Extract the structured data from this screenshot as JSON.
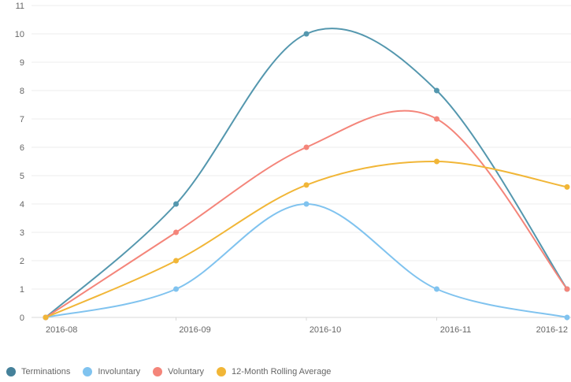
{
  "chart_data": {
    "type": "line",
    "categories": [
      "2016-08",
      "2016-09",
      "2016-10",
      "2016-11",
      "2016-12"
    ],
    "ylim": [
      0,
      11
    ],
    "yticks": [
      0,
      1,
      2,
      3,
      4,
      5,
      6,
      7,
      8,
      9,
      10,
      11
    ],
    "grid": true,
    "legend_position": "bottom-left",
    "series": [
      {
        "name": "Terminations",
        "values": [
          0,
          4,
          10,
          8,
          1
        ],
        "color": "#5497ae"
      },
      {
        "name": "Involuntary",
        "values": [
          0,
          1,
          4,
          1,
          0
        ],
        "color": "#80c3ef"
      },
      {
        "name": "Voluntary",
        "values": [
          0,
          3,
          6,
          7,
          1
        ],
        "color": "#f4857a"
      },
      {
        "name": "12-Month Rolling Average",
        "values": [
          0,
          2,
          4.67,
          5.5,
          4.6
        ],
        "color": "#f1b637"
      }
    ]
  },
  "legend": {
    "items": [
      {
        "label": "Terminations",
        "color": "#45819a"
      },
      {
        "label": "Involuntary",
        "color": "#80c3ef"
      },
      {
        "label": "Voluntary",
        "color": "#f4857a"
      },
      {
        "label": "12-Month Rolling Average",
        "color": "#f1b637"
      }
    ]
  }
}
